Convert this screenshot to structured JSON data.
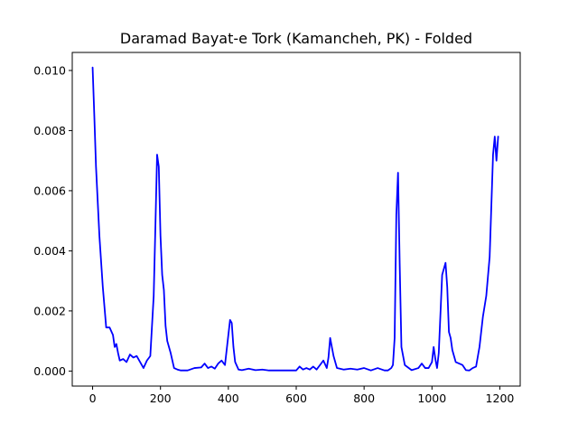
{
  "chart_data": {
    "type": "line",
    "title": "Daramad Bayat-e Tork (Kamancheh, PK) - Folded",
    "xlabel": "",
    "ylabel": "",
    "xlim": [
      -60,
      1260
    ],
    "ylim": [
      -0.0005,
      0.0106
    ],
    "x_ticks": [
      0,
      200,
      400,
      600,
      800,
      1000,
      1200
    ],
    "x_tick_labels": [
      "0",
      "200",
      "400",
      "600",
      "800",
      "1000",
      "1200"
    ],
    "y_ticks": [
      0.0,
      0.002,
      0.004,
      0.006,
      0.008,
      0.01
    ],
    "y_tick_labels": [
      "0.000",
      "0.002",
      "0.004",
      "0.006",
      "0.008",
      "0.010"
    ],
    "grid": false,
    "series": [
      {
        "color": "#0000ff",
        "x": [
          0,
          5,
          10,
          20,
          30,
          40,
          50,
          60,
          65,
          70,
          75,
          80,
          90,
          100,
          110,
          120,
          130,
          140,
          150,
          160,
          170,
          180,
          185,
          190,
          195,
          200,
          205,
          210,
          215,
          220,
          230,
          240,
          250,
          260,
          270,
          280,
          300,
          320,
          330,
          340,
          350,
          360,
          370,
          380,
          390,
          400,
          405,
          410,
          415,
          420,
          430,
          440,
          460,
          480,
          500,
          520,
          540,
          560,
          580,
          600,
          610,
          620,
          630,
          640,
          650,
          660,
          670,
          680,
          690,
          695,
          700,
          705,
          710,
          720,
          740,
          760,
          780,
          800,
          820,
          840,
          860,
          870,
          880,
          885,
          890,
          895,
          900,
          905,
          910,
          920,
          940,
          960,
          970,
          980,
          990,
          1000,
          1005,
          1010,
          1015,
          1020,
          1030,
          1040,
          1045,
          1050,
          1055,
          1060,
          1070,
          1080,
          1090,
          1100,
          1110,
          1120,
          1130,
          1140,
          1150,
          1160,
          1170,
          1175,
          1180,
          1185,
          1190,
          1195
        ],
        "values": [
          0.0101,
          0.0085,
          0.0068,
          0.0045,
          0.0028,
          0.00145,
          0.00145,
          0.0012,
          0.0008,
          0.0009,
          0.0006,
          0.00035,
          0.0004,
          0.0003,
          0.00055,
          0.00045,
          0.0005,
          0.0003,
          0.0001,
          0.00035,
          0.0005,
          0.0025,
          0.0048,
          0.0072,
          0.0068,
          0.0045,
          0.0032,
          0.0027,
          0.0015,
          0.001,
          0.0006,
          0.0001,
          5e-05,
          2e-05,
          2e-05,
          2e-05,
          0.0001,
          0.00012,
          0.00025,
          0.0001,
          0.00015,
          8e-05,
          0.00025,
          0.00035,
          0.0002,
          0.0012,
          0.0017,
          0.0016,
          0.0008,
          0.0003,
          5e-05,
          3e-05,
          8e-05,
          3e-05,
          5e-05,
          2e-05,
          2e-05,
          2e-05,
          2e-05,
          2e-05,
          0.00015,
          5e-05,
          0.0001,
          5e-05,
          0.00015,
          5e-05,
          0.0002,
          0.00035,
          0.0001,
          0.00045,
          0.0011,
          0.0008,
          0.0005,
          0.0001,
          5e-05,
          8e-05,
          5e-05,
          0.0001,
          2e-05,
          0.0001,
          2e-05,
          2e-05,
          0.0001,
          0.0002,
          0.0011,
          0.0052,
          0.0066,
          0.0035,
          0.0008,
          0.0002,
          3e-05,
          0.0001,
          0.00025,
          0.0001,
          0.0001,
          0.0003,
          0.0008,
          0.0004,
          0.0001,
          0.0006,
          0.0032,
          0.0036,
          0.0028,
          0.0013,
          0.0011,
          0.0007,
          0.0003,
          0.00025,
          0.0002,
          3e-05,
          2e-05,
          0.0001,
          0.00015,
          0.0008,
          0.0018,
          0.0025,
          0.0038,
          0.0055,
          0.0072,
          0.0078,
          0.007,
          0.0078
        ]
      }
    ]
  }
}
